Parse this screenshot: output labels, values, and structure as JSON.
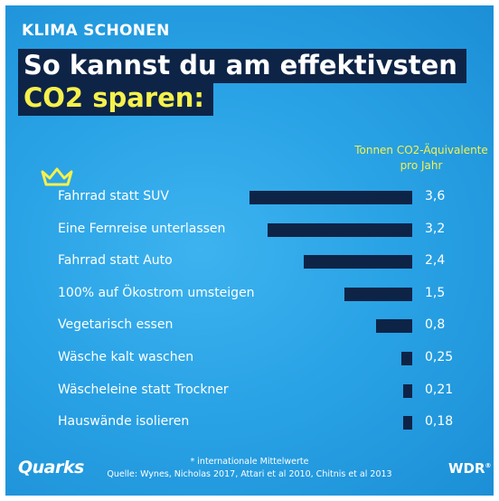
{
  "header": {
    "kicker": "KLIMA SCHONEN",
    "title_line1": "So kannst du am effektivsten",
    "title_line2": "CO2 sparen:"
  },
  "colors": {
    "background": "#2aa3e6",
    "bar": "#0d2447",
    "highlight": "#f6f14c",
    "text": "#ffffff"
  },
  "chart_data": {
    "type": "bar",
    "orientation": "horizontal",
    "title": "So kannst du am effektivsten CO2 sparen:",
    "unit_label": "Tonnen CO2-Äquivalente pro Jahr",
    "categories": [
      "Fahrrad statt SUV",
      "Eine Fernreise unterlassen",
      "Fahrrad statt Auto",
      "100% auf Ökostrom umsteigen",
      "Vegetarisch essen",
      "Wäsche kalt waschen",
      "Wäscheleine statt Trockner",
      "Hauswände isolieren"
    ],
    "values": [
      3.6,
      3.2,
      2.4,
      1.5,
      0.8,
      0.25,
      0.21,
      0.18
    ],
    "value_labels": [
      "3,6",
      "3,2",
      "2,4",
      "1,5",
      "0,8",
      "0,25",
      "0,21",
      "0,18"
    ],
    "xlim": [
      0,
      3.6
    ],
    "grid": false,
    "legend": "none"
  },
  "decor": {
    "crown_icon": "crown-icon"
  },
  "footer": {
    "note": "* internationale Mittelwerte",
    "source": "Quelle: Wynes, Nicholas 2017, Attari et al 2010, Chitnis et al 2013",
    "logo_left": "Quarks",
    "logo_right": "WDR",
    "logo_right_mark": "®"
  }
}
